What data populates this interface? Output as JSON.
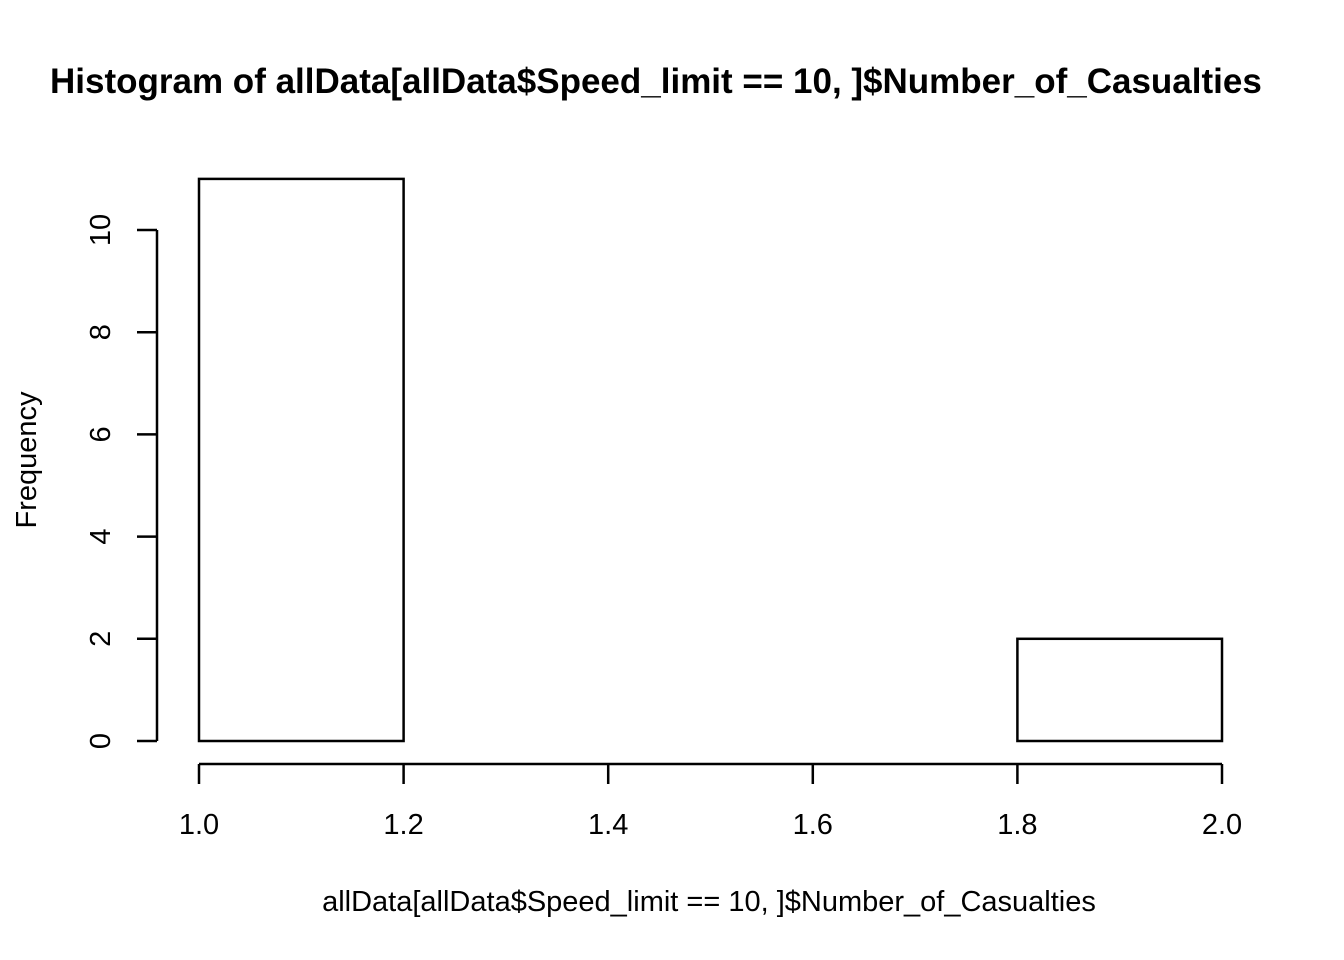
{
  "chart_data": {
    "type": "bar",
    "title": "Histogram of allData[allData$Speed_limit == 10, ]$Number_of_Casualties",
    "xlabel": "allData[allData$Speed_limit == 10, ]$Number_of_Casualties",
    "ylabel": "Frequency",
    "bins": [
      {
        "start": 1.0,
        "end": 1.2,
        "count": 11
      },
      {
        "start": 1.2,
        "end": 1.4,
        "count": 0
      },
      {
        "start": 1.4,
        "end": 1.6,
        "count": 0
      },
      {
        "start": 1.6,
        "end": 1.8,
        "count": 0
      },
      {
        "start": 1.8,
        "end": 2.0,
        "count": 2
      }
    ],
    "xlim": [
      1.0,
      2.0
    ],
    "ylim": [
      0,
      11
    ],
    "x_ticks": [
      1.0,
      1.2,
      1.4,
      1.6,
      1.8,
      2.0
    ],
    "x_tick_labels": [
      "1.0",
      "1.2",
      "1.4",
      "1.6",
      "1.8",
      "2.0"
    ],
    "y_ticks": [
      0,
      2,
      4,
      6,
      8,
      10
    ],
    "y_tick_labels": [
      "0",
      "2",
      "4",
      "6",
      "8",
      "10"
    ],
    "grid": false,
    "legend": "none"
  }
}
